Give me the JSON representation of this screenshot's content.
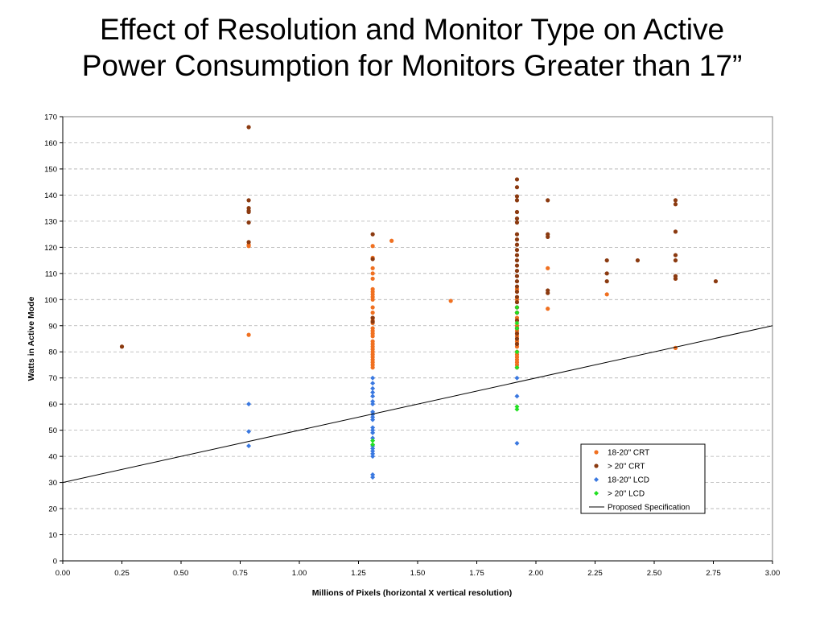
{
  "slide": {
    "title_line1": "Effect of Resolution and Monitor Type on Active",
    "title_line2": "Power Consumption for Monitors Greater than 17”"
  },
  "chart_data": {
    "type": "scatter",
    "xlabel": "Millions of Pixels (horizontal X vertical resolution)",
    "ylabel": "Watts in Active Mode",
    "xlim": [
      0,
      3.0
    ],
    "ylim": [
      0,
      170
    ],
    "x_ticks": [
      "0.00",
      "0.25",
      "0.50",
      "0.75",
      "1.00",
      "1.25",
      "1.50",
      "1.75",
      "2.00",
      "2.25",
      "2.50",
      "2.75",
      "3.00"
    ],
    "y_ticks": [
      "0",
      "10",
      "20",
      "30",
      "40",
      "50",
      "60",
      "70",
      "80",
      "90",
      "100",
      "110",
      "120",
      "130",
      "140",
      "150",
      "160",
      "170"
    ],
    "grid": "horizontal dashed",
    "legend_position": "bottom-right",
    "series": [
      {
        "name": "18-20\" CRT",
        "color": "#f07020",
        "marker": "circle",
        "points": [
          [
            0.786,
            121
          ],
          [
            0.786,
            120.5
          ],
          [
            0.786,
            86.5
          ],
          [
            1.31,
            120.5
          ],
          [
            1.31,
            116
          ],
          [
            1.31,
            112
          ],
          [
            1.31,
            110
          ],
          [
            1.31,
            108
          ],
          [
            1.31,
            104
          ],
          [
            1.31,
            103
          ],
          [
            1.31,
            102
          ],
          [
            1.31,
            101
          ],
          [
            1.31,
            100
          ],
          [
            1.31,
            97
          ],
          [
            1.31,
            95
          ],
          [
            1.31,
            93
          ],
          [
            1.31,
            92
          ],
          [
            1.31,
            91
          ],
          [
            1.31,
            89
          ],
          [
            1.31,
            88
          ],
          [
            1.31,
            87
          ],
          [
            1.31,
            86
          ],
          [
            1.31,
            84
          ],
          [
            1.31,
            83
          ],
          [
            1.31,
            82
          ],
          [
            1.31,
            81
          ],
          [
            1.31,
            80
          ],
          [
            1.31,
            79
          ],
          [
            1.31,
            78
          ],
          [
            1.31,
            77
          ],
          [
            1.31,
            76
          ],
          [
            1.31,
            75
          ],
          [
            1.31,
            74
          ],
          [
            1.39,
            122.5
          ],
          [
            1.64,
            99.5
          ],
          [
            1.92,
            104
          ],
          [
            1.92,
            100
          ],
          [
            1.92,
            93
          ],
          [
            1.92,
            90
          ],
          [
            1.92,
            88
          ],
          [
            1.92,
            86
          ],
          [
            1.92,
            84
          ],
          [
            1.92,
            82
          ],
          [
            1.92,
            80
          ],
          [
            1.92,
            79
          ],
          [
            1.92,
            78
          ],
          [
            1.92,
            77
          ],
          [
            1.92,
            76
          ],
          [
            1.92,
            75
          ],
          [
            1.92,
            74
          ],
          [
            2.05,
            112
          ],
          [
            2.05,
            96.5
          ],
          [
            2.3,
            102
          ],
          [
            2.59,
            108
          ],
          [
            2.59,
            81.5
          ]
        ]
      },
      {
        "name": "> 20\" CRT",
        "color": "#8b3a10",
        "marker": "circle",
        "points": [
          [
            0.25,
            82
          ],
          [
            0.786,
            166
          ],
          [
            0.786,
            138
          ],
          [
            0.786,
            135
          ],
          [
            0.786,
            134
          ],
          [
            0.786,
            133.5
          ],
          [
            0.786,
            129.5
          ],
          [
            0.786,
            122
          ],
          [
            1.31,
            125
          ],
          [
            1.31,
            115.5
          ],
          [
            1.31,
            93
          ],
          [
            1.31,
            91.5
          ],
          [
            1.92,
            146
          ],
          [
            1.92,
            143
          ],
          [
            1.92,
            139.5
          ],
          [
            1.92,
            138
          ],
          [
            1.92,
            133.5
          ],
          [
            1.92,
            131
          ],
          [
            1.92,
            129.5
          ],
          [
            1.92,
            125
          ],
          [
            1.92,
            123
          ],
          [
            1.92,
            121
          ],
          [
            1.92,
            119
          ],
          [
            1.92,
            117
          ],
          [
            1.92,
            115
          ],
          [
            1.92,
            113
          ],
          [
            1.92,
            111
          ],
          [
            1.92,
            109
          ],
          [
            1.92,
            107
          ],
          [
            1.92,
            105
          ],
          [
            1.92,
            103
          ],
          [
            1.92,
            101
          ],
          [
            1.92,
            99
          ],
          [
            1.92,
            97
          ],
          [
            1.92,
            95
          ],
          [
            1.92,
            92
          ],
          [
            1.92,
            89
          ],
          [
            1.92,
            87
          ],
          [
            1.92,
            85
          ],
          [
            1.92,
            83
          ],
          [
            2.05,
            138
          ],
          [
            2.05,
            125
          ],
          [
            2.05,
            124
          ],
          [
            2.05,
            103.5
          ],
          [
            2.05,
            102.5
          ],
          [
            2.3,
            115
          ],
          [
            2.3,
            110
          ],
          [
            2.3,
            107
          ],
          [
            2.43,
            115
          ],
          [
            2.59,
            138
          ],
          [
            2.59,
            136.5
          ],
          [
            2.59,
            126
          ],
          [
            2.59,
            117
          ],
          [
            2.59,
            115
          ],
          [
            2.59,
            109
          ],
          [
            2.59,
            108
          ],
          [
            2.76,
            107
          ]
        ]
      },
      {
        "name": "18-20\" LCD",
        "color": "#3a78e0",
        "marker": "diamond",
        "points": [
          [
            0.786,
            60
          ],
          [
            0.786,
            49.5
          ],
          [
            0.786,
            44
          ],
          [
            1.31,
            70
          ],
          [
            1.31,
            68
          ],
          [
            1.31,
            66
          ],
          [
            1.31,
            64.5
          ],
          [
            1.31,
            63
          ],
          [
            1.31,
            61
          ],
          [
            1.31,
            60
          ],
          [
            1.31,
            57
          ],
          [
            1.31,
            56
          ],
          [
            1.31,
            55
          ],
          [
            1.31,
            54
          ],
          [
            1.31,
            51
          ],
          [
            1.31,
            50
          ],
          [
            1.31,
            49
          ],
          [
            1.31,
            47
          ],
          [
            1.31,
            44
          ],
          [
            1.31,
            43
          ],
          [
            1.31,
            42
          ],
          [
            1.31,
            41
          ],
          [
            1.31,
            40
          ],
          [
            1.31,
            33
          ],
          [
            1.31,
            32
          ],
          [
            1.92,
            70
          ],
          [
            1.92,
            63
          ],
          [
            1.92,
            45
          ]
        ]
      },
      {
        "name": "> 20\" LCD",
        "color": "#22e022",
        "marker": "diamond",
        "points": [
          [
            1.31,
            46
          ],
          [
            1.31,
            44.5
          ],
          [
            1.92,
            97
          ],
          [
            1.92,
            95
          ],
          [
            1.92,
            91
          ],
          [
            1.92,
            89
          ],
          [
            1.92,
            80
          ],
          [
            1.92,
            74
          ],
          [
            1.92,
            59
          ],
          [
            1.92,
            58
          ]
        ]
      },
      {
        "name": "Proposed Specification",
        "color": "#000000",
        "marker": "line",
        "points": [
          [
            0,
            30
          ],
          [
            3.0,
            90
          ]
        ]
      }
    ]
  }
}
